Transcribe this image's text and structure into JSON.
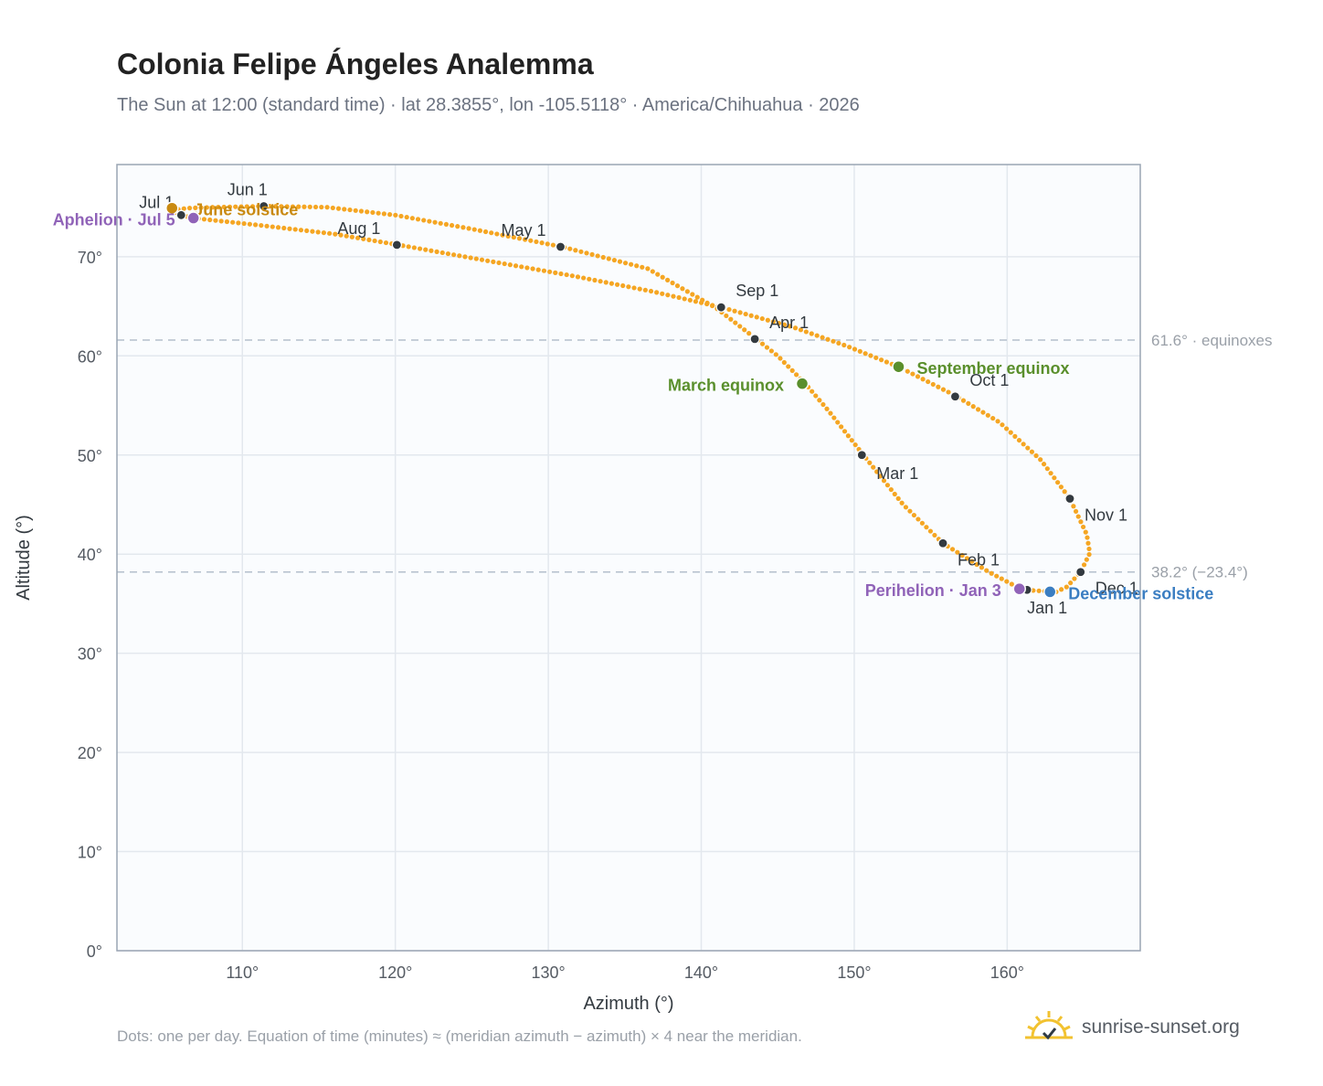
{
  "title": "Colonia Felipe Ángeles Analemma",
  "subtitle": "The Sun at 12:00 (standard time) · lat 28.3855°, lon -105.5118° · America/Chihuahua · 2026",
  "footnote": "Dots: one per day. Equation of time (minutes) ≈ (meridian azimuth − azimuth) × 4 near the meridian.",
  "brand": {
    "name": "sunrise-sunset.org",
    "logo_icon": "sun-logo-icon"
  },
  "colors": {
    "curve": "#f5a623",
    "month_dot": "#333a40",
    "equinox": "#5a8f2c",
    "solstice_june": "#c98a12",
    "solstice_december": "#3b7ec2",
    "apsis": "#9063b8",
    "reference_line": "#b4bfcc",
    "grid": "#e3e8ee",
    "plot_bg": "#fafcfe"
  },
  "chart_data": {
    "type": "scatter",
    "xlabel": "Azimuth (°)",
    "ylabel": "Altitude (°)",
    "xlim": [
      101.8,
      168.7
    ],
    "ylim": [
      0,
      79.3
    ],
    "xticks": [
      {
        "value": 110,
        "label": "110°"
      },
      {
        "value": 120,
        "label": "120°"
      },
      {
        "value": 130,
        "label": "130°"
      },
      {
        "value": 140,
        "label": "140°"
      },
      {
        "value": 150,
        "label": "150°"
      },
      {
        "value": 160,
        "label": "160°"
      }
    ],
    "yticks": [
      {
        "value": 0,
        "label": "0°"
      },
      {
        "value": 10,
        "label": "10°"
      },
      {
        "value": 20,
        "label": "20°"
      },
      {
        "value": 30,
        "label": "30°"
      },
      {
        "value": 40,
        "label": "40°"
      },
      {
        "value": 50,
        "label": "50°"
      },
      {
        "value": 60,
        "label": "60°"
      },
      {
        "value": 70,
        "label": "70°"
      }
    ],
    "grid": true,
    "reference_lines": [
      {
        "y": 61.6,
        "label": "61.6° · equinoxes"
      },
      {
        "y": 38.2,
        "label": "38.2° (−23.4°)"
      }
    ],
    "analemma_path": [
      [
        163.2,
        36.2
      ],
      [
        161.0,
        36.4
      ],
      [
        158.8,
        38.2
      ],
      [
        155.8,
        41.1
      ],
      [
        153.2,
        45.0
      ],
      [
        150.6,
        50.0
      ],
      [
        148.3,
        54.5
      ],
      [
        146.8,
        57.2
      ],
      [
        145.0,
        60.0
      ],
      [
        143.6,
        61.7
      ],
      [
        141.0,
        64.8
      ],
      [
        136.5,
        68.8
      ],
      [
        130.9,
        71.0
      ],
      [
        125.0,
        72.8
      ],
      [
        120.0,
        74.2
      ],
      [
        115.5,
        75.0
      ],
      [
        111.4,
        75.1
      ],
      [
        108.2,
        75.0
      ],
      [
        106.4,
        74.9
      ],
      [
        105.4,
        74.7
      ],
      [
        106.0,
        74.2
      ],
      [
        106.8,
        73.9
      ],
      [
        111.0,
        73.2
      ],
      [
        116.0,
        72.3
      ],
      [
        120.2,
        71.2
      ],
      [
        126.0,
        69.6
      ],
      [
        131.5,
        68.1
      ],
      [
        136.8,
        66.5
      ],
      [
        141.3,
        64.9
      ],
      [
        146.0,
        62.9
      ],
      [
        149.5,
        61.0
      ],
      [
        152.9,
        58.9
      ],
      [
        156.6,
        56.0
      ],
      [
        159.5,
        53.3
      ],
      [
        162.2,
        49.5
      ],
      [
        164.1,
        45.6
      ],
      [
        165.2,
        42.0
      ],
      [
        165.4,
        40.1
      ],
      [
        164.8,
        38.2
      ],
      [
        163.9,
        36.7
      ],
      [
        163.2,
        36.2
      ]
    ],
    "month_markers": [
      {
        "label": "Jan 1",
        "x": 161.3,
        "y": 36.4
      },
      {
        "label": "Feb 1",
        "x": 155.8,
        "y": 41.1
      },
      {
        "label": "Mar 1",
        "x": 150.5,
        "y": 50.0
      },
      {
        "label": "Apr 1",
        "x": 143.5,
        "y": 61.7
      },
      {
        "label": "May 1",
        "x": 130.8,
        "y": 71.0
      },
      {
        "label": "Jun 1",
        "x": 111.4,
        "y": 75.1
      },
      {
        "label": "Jul 1",
        "x": 106.0,
        "y": 74.2
      },
      {
        "label": "Aug 1",
        "x": 120.1,
        "y": 71.2
      },
      {
        "label": "Sep 1",
        "x": 141.3,
        "y": 64.9
      },
      {
        "label": "Oct 1",
        "x": 156.6,
        "y": 55.9
      },
      {
        "label": "Nov 1",
        "x": 164.1,
        "y": 45.6
      },
      {
        "label": "Dec 1",
        "x": 164.8,
        "y": 38.2
      }
    ],
    "events": [
      {
        "label": "March equinox",
        "x": 146.6,
        "y": 57.2,
        "kind": "equinox"
      },
      {
        "label": "September equinox",
        "x": 152.9,
        "y": 58.9,
        "kind": "equinox"
      },
      {
        "label": "June solstice",
        "x": 105.4,
        "y": 74.9,
        "kind": "solstice_june"
      },
      {
        "label": "December solstice",
        "x": 162.8,
        "y": 36.2,
        "kind": "solstice_december"
      },
      {
        "label": "Aphelion · Jul 5",
        "x": 106.8,
        "y": 73.9,
        "kind": "apsis"
      },
      {
        "label": "Perihelion · Jan 3",
        "x": 160.8,
        "y": 36.5,
        "kind": "apsis"
      }
    ]
  }
}
